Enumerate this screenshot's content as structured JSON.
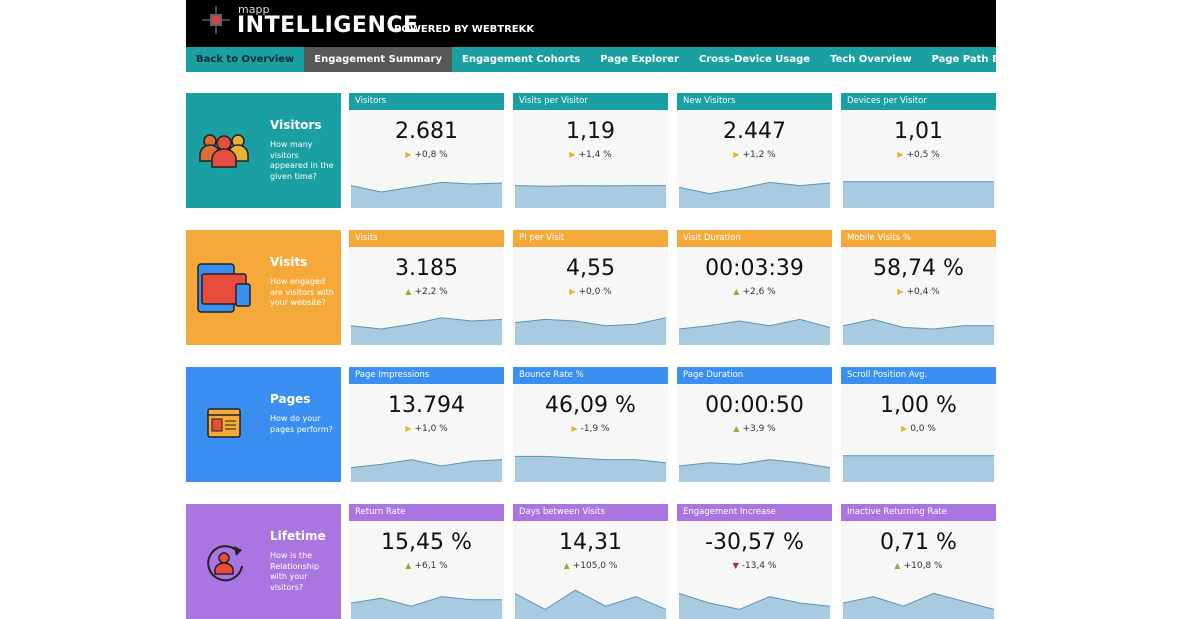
{
  "header": {
    "brand_small": "mapp",
    "brand": "INTELLIGENCE",
    "powered": "POWERED BY WEBTREKK"
  },
  "nav": [
    {
      "label": "Back to Overview",
      "state": "back"
    },
    {
      "label": "Engagement Summary",
      "state": "active"
    },
    {
      "label": "Engagement Cohorts"
    },
    {
      "label": "Page Explorer"
    },
    {
      "label": "Cross-Device Usage"
    },
    {
      "label": "Tech Overview"
    },
    {
      "label": "Page Path Explorer"
    }
  ],
  "colors": {
    "neutral": "#f0b429",
    "up": "#8ab33a",
    "down": "#b8222a",
    "spark_fill": "#a9cbe0",
    "spark_line": "#5f93bb"
  },
  "rows": [
    {
      "title": "Visitors",
      "desc": "How many visitors appeared in the given time?",
      "color": "#1a9fa3",
      "icon": "users-icon",
      "cards": [
        {
          "label": "Visitors",
          "value": "2.681",
          "delta": "+0,8 %",
          "trend": "neutral",
          "spark": [
            0.7,
            0.5,
            0.65,
            0.8,
            0.75,
            0.78
          ]
        },
        {
          "label": "Visits per Visitor",
          "value": "1,19",
          "delta": "+1,4 %",
          "trend": "neutral",
          "spark": [
            0.7,
            0.68,
            0.7,
            0.69,
            0.7,
            0.7
          ]
        },
        {
          "label": "New Visitors",
          "value": "2.447",
          "delta": "+1,2 %",
          "trend": "neutral",
          "spark": [
            0.65,
            0.45,
            0.6,
            0.8,
            0.7,
            0.78
          ]
        },
        {
          "label": "Devices per Visitor",
          "value": "1,01",
          "delta": "+0,5 %",
          "trend": "neutral",
          "spark": [
            0.82,
            0.82,
            0.82,
            0.82,
            0.82,
            0.82
          ]
        }
      ]
    },
    {
      "title": "Visits",
      "desc": "How engaged are visitors with your website?",
      "color": "#f5a93a",
      "icon": "devices-icon",
      "cards": [
        {
          "label": "Visits",
          "value": "3.185",
          "delta": "+2,2 %",
          "trend": "up",
          "spark": [
            0.6,
            0.5,
            0.65,
            0.85,
            0.75,
            0.8
          ]
        },
        {
          "label": "PI per Visit",
          "value": "4,55",
          "delta": "+0,0 %",
          "trend": "neutral",
          "spark": [
            0.7,
            0.8,
            0.75,
            0.6,
            0.65,
            0.85
          ]
        },
        {
          "label": "Visit Duration",
          "value": "00:03:39",
          "delta": "+2,6 %",
          "trend": "up",
          "spark": [
            0.5,
            0.6,
            0.75,
            0.6,
            0.8,
            0.55
          ]
        },
        {
          "label": "Mobile Visits %",
          "value": "58,74 %",
          "delta": "+0,4 %",
          "trend": "neutral",
          "spark": [
            0.6,
            0.8,
            0.55,
            0.5,
            0.6,
            0.6
          ]
        }
      ]
    },
    {
      "title": "Pages",
      "desc": "How do your pages perform?",
      "color": "#3a8ff0",
      "icon": "browser-window-icon",
      "cards": [
        {
          "label": "Page Impressions",
          "value": "13.794",
          "delta": "+1,0 %",
          "trend": "neutral",
          "spark": [
            0.45,
            0.55,
            0.7,
            0.5,
            0.65,
            0.7
          ]
        },
        {
          "label": "Bounce Rate %",
          "value": "46,09 %",
          "delta": "-1,9 %",
          "trend": "neutral",
          "spark": [
            0.8,
            0.8,
            0.75,
            0.7,
            0.7,
            0.6
          ]
        },
        {
          "label": "Page Duration",
          "value": "00:00:50",
          "delta": "+3,9 %",
          "trend": "up",
          "spark": [
            0.5,
            0.6,
            0.55,
            0.7,
            0.6,
            0.45
          ]
        },
        {
          "label": "Scroll Position Avg.",
          "value": "1,00 %",
          "delta": "0,0 %",
          "trend": "neutral",
          "spark": [
            0.82,
            0.82,
            0.82,
            0.82,
            0.82,
            0.82
          ]
        }
      ]
    },
    {
      "title": "Lifetime",
      "desc": "How is the Relationship with your visitors?",
      "color": "#a975e0",
      "icon": "user-cycle-icon",
      "cards": [
        {
          "label": "Return Rate",
          "value": "15,45 %",
          "delta": "+6,1 %",
          "trend": "up",
          "spark": [
            0.5,
            0.65,
            0.4,
            0.7,
            0.6,
            0.6
          ]
        },
        {
          "label": "Days between Visits",
          "value": "14,31",
          "delta": "+105,0 %",
          "trend": "up",
          "spark": [
            0.8,
            0.3,
            0.9,
            0.4,
            0.7,
            0.3
          ]
        },
        {
          "label": "Engagement Increase",
          "value": "-30,57 %",
          "delta": "-13,4 %",
          "trend": "down",
          "spark": [
            0.8,
            0.5,
            0.3,
            0.7,
            0.5,
            0.4
          ]
        },
        {
          "label": "Inactive Returning Rate",
          "value": "0,71 %",
          "delta": "+10,8 %",
          "trend": "up",
          "spark": [
            0.5,
            0.7,
            0.4,
            0.8,
            0.55,
            0.3
          ]
        }
      ]
    }
  ]
}
